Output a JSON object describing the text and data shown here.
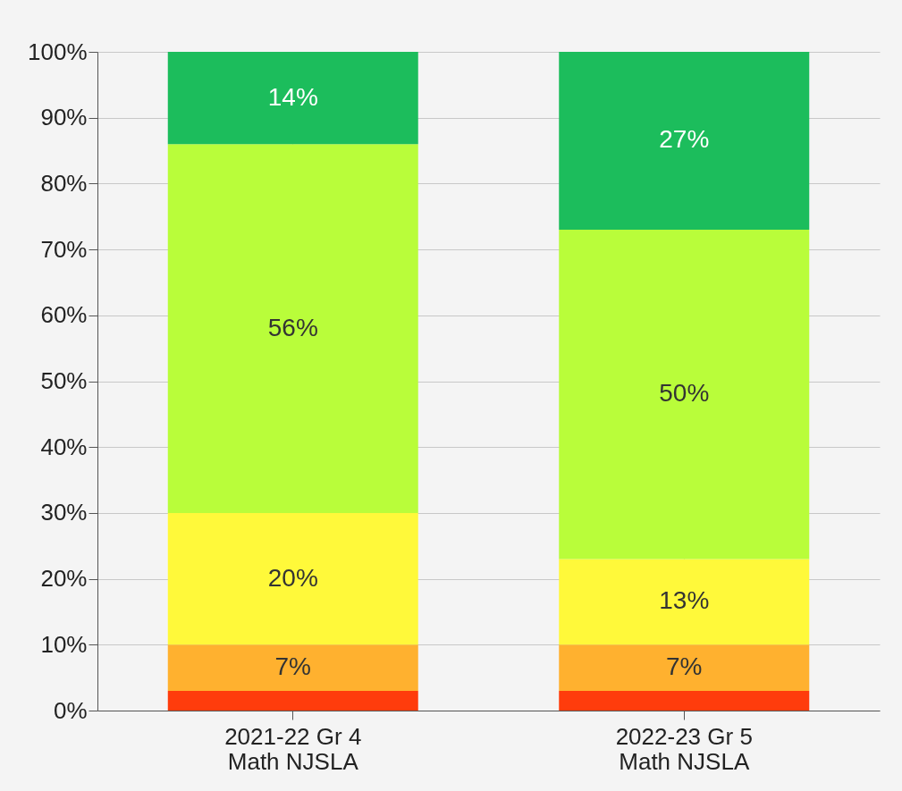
{
  "chart_data": {
    "type": "bar",
    "stacked": true,
    "categories": [
      "2021-22 Gr 4\nMath NJSLA",
      "2022-23 Gr 5\nMath NJSLA"
    ],
    "series": [
      {
        "color": "#ff3c0c",
        "values": [
          3,
          3
        ],
        "value_labels": [
          null,
          null
        ]
      },
      {
        "color": "#ffb12f",
        "values": [
          7,
          7
        ],
        "value_labels": [
          "7%",
          "7%"
        ]
      },
      {
        "color": "#fff93a",
        "values": [
          20,
          13
        ],
        "value_labels": [
          "20%",
          "13%"
        ]
      },
      {
        "color": "#b9fd3a",
        "values": [
          56,
          50
        ],
        "value_labels": [
          "56%",
          "50%"
        ]
      },
      {
        "color": "#1cbd5c",
        "values": [
          14,
          27
        ],
        "value_labels": [
          "14%",
          "27%"
        ]
      }
    ],
    "ylim": [
      0,
      100
    ],
    "yticks": [
      {
        "value": 0,
        "label": "0%"
      },
      {
        "value": 10,
        "label": "10%"
      },
      {
        "value": 20,
        "label": "20%"
      },
      {
        "value": 30,
        "label": "30%"
      },
      {
        "value": 40,
        "label": "40%"
      },
      {
        "value": 50,
        "label": "50%"
      },
      {
        "value": 60,
        "label": "60%"
      },
      {
        "value": 70,
        "label": "70%"
      },
      {
        "value": 80,
        "label": "80%"
      },
      {
        "value": 90,
        "label": "90%"
      },
      {
        "value": 100,
        "label": "100%"
      }
    ],
    "grid": true
  }
}
